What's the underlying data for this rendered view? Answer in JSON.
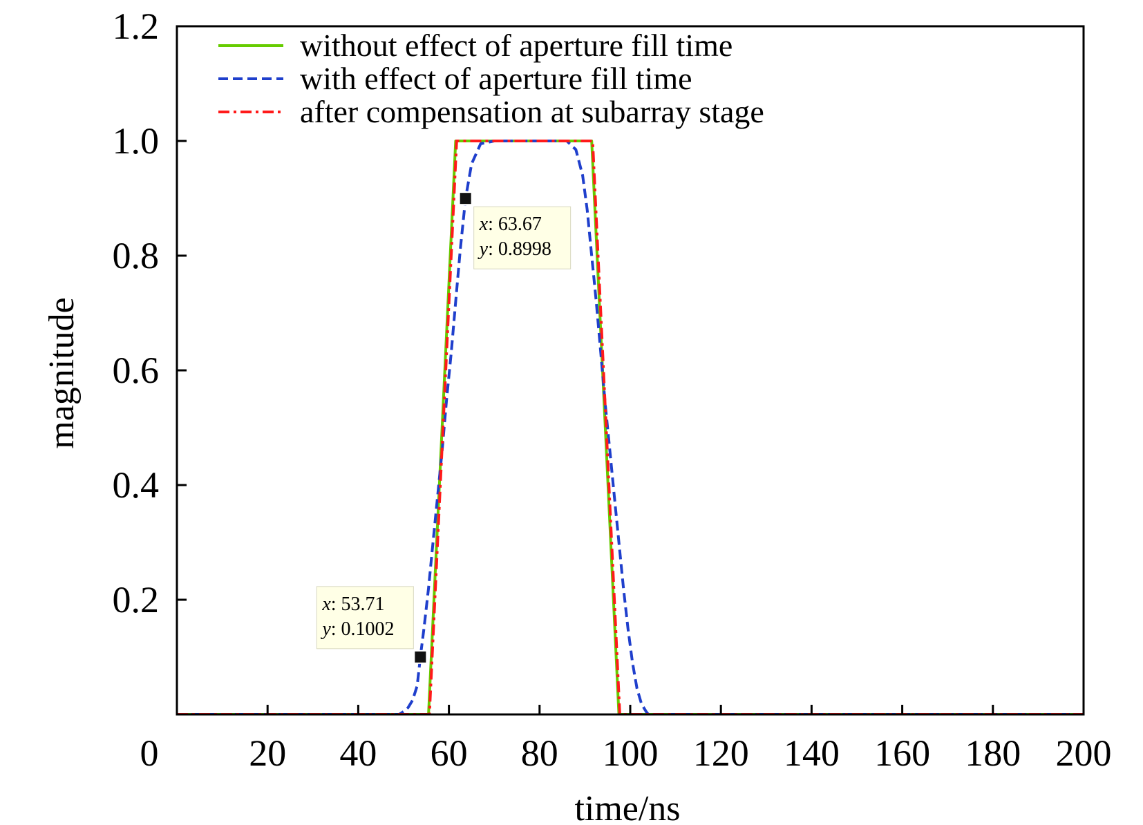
{
  "chart_data": {
    "type": "line",
    "title": "",
    "xlabel": "time/ns",
    "ylabel": "magnitude",
    "xlim": [
      0,
      200
    ],
    "ylim": [
      0,
      1.2
    ],
    "x_ticks": [
      0,
      20,
      40,
      60,
      80,
      100,
      120,
      140,
      160,
      180,
      200
    ],
    "x_tick_labels": [
      "0",
      "20",
      "40",
      "60",
      "80",
      "100",
      "120",
      "140",
      "160",
      "180",
      "200"
    ],
    "y_ticks": [
      0.2,
      0.4,
      0.6,
      0.8,
      1.0,
      1.2
    ],
    "y_tick_labels": [
      "0.2",
      "0.4",
      "0.6",
      "0.8",
      "1.0",
      "1.2"
    ],
    "grid": false,
    "legend_position": "top-left",
    "series": [
      {
        "name": "without effect of aperture fill time",
        "color": "#66cc00",
        "style": "solid",
        "x": [
          0,
          55.5,
          61.5,
          91.5,
          97.5,
          200
        ],
        "y": [
          0,
          0,
          1.0,
          1.0,
          0,
          0
        ]
      },
      {
        "name": "with effect of aperture fill time",
        "color": "#1f3fcc",
        "style": "dashed",
        "x": [
          0,
          49,
          50,
          51,
          52,
          53,
          53.71,
          54.5,
          55.5,
          56.5,
          57.5,
          58.5,
          59.5,
          60.5,
          61.5,
          62.5,
          63.67,
          65,
          67,
          70,
          86,
          88,
          89.5,
          90.5,
          91.5,
          92.5,
          93.5,
          94.5,
          95.5,
          96.5,
          97.5,
          98.5,
          99.5,
          100.5,
          101.5,
          102.5,
          103.5,
          104,
          200
        ],
        "y": [
          0,
          0,
          0.005,
          0.012,
          0.025,
          0.05,
          0.1002,
          0.15,
          0.22,
          0.3,
          0.38,
          0.46,
          0.55,
          0.63,
          0.72,
          0.81,
          0.8998,
          0.96,
          0.995,
          1.0,
          1.0,
          0.985,
          0.94,
          0.88,
          0.8,
          0.72,
          0.63,
          0.54,
          0.46,
          0.38,
          0.3,
          0.22,
          0.15,
          0.09,
          0.045,
          0.018,
          0.005,
          0,
          0
        ]
      },
      {
        "name": "after compensation at subarray stage",
        "color": "#ff1a1a",
        "style": "dashdot",
        "x": [
          0,
          55.7,
          61.7,
          91.7,
          97.7,
          200
        ],
        "y": [
          0,
          0,
          1.0,
          1.0,
          0,
          0
        ]
      }
    ],
    "annotations": [
      {
        "x": 53.71,
        "y": 0.1002,
        "x_label": "x",
        "x_text": "53.71",
        "y_label": "y",
        "y_text": "0.1002"
      },
      {
        "x": 63.67,
        "y": 0.8998,
        "x_label": "x",
        "x_text": "63.67",
        "y_label": "y",
        "y_text": "0.8998"
      }
    ]
  }
}
